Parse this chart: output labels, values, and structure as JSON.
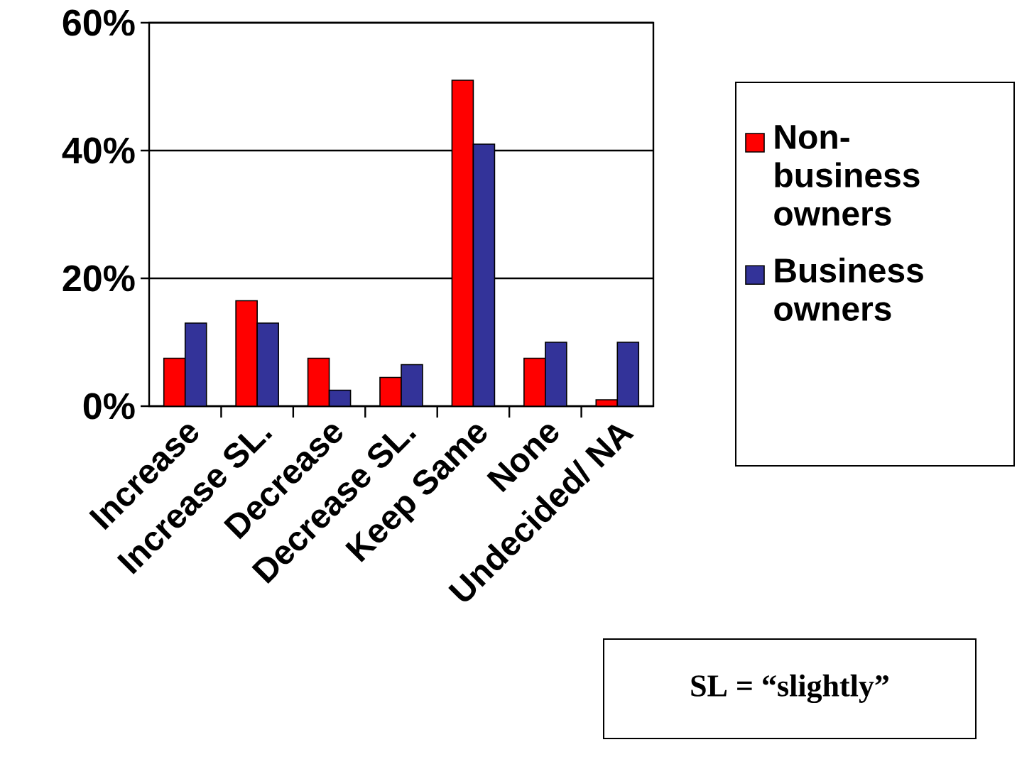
{
  "chart_data": {
    "type": "bar",
    "categories": [
      "Increase",
      "Increase SL.",
      "Decrease",
      "Decrease SL.",
      "Keep Same",
      "None",
      "Undecided/ NA"
    ],
    "series": [
      {
        "name": "Non-business owners",
        "color": "#ff0000",
        "values": [
          7.5,
          16.5,
          7.5,
          4.5,
          51,
          7.5,
          1
        ]
      },
      {
        "name": "Business owners",
        "color": "#333399",
        "values": [
          13,
          13,
          2.5,
          6.5,
          41,
          10,
          10
        ]
      }
    ],
    "ylim": [
      0,
      60
    ],
    "yticks": [
      {
        "value": 0,
        "label": "0%"
      },
      {
        "value": 20,
        "label": "20%"
      },
      {
        "value": 40,
        "label": "40%"
      },
      {
        "value": 60,
        "label": "60%"
      }
    ],
    "grid": "y",
    "legend": "right",
    "annotations": [
      "SL = “slightly”"
    ]
  }
}
